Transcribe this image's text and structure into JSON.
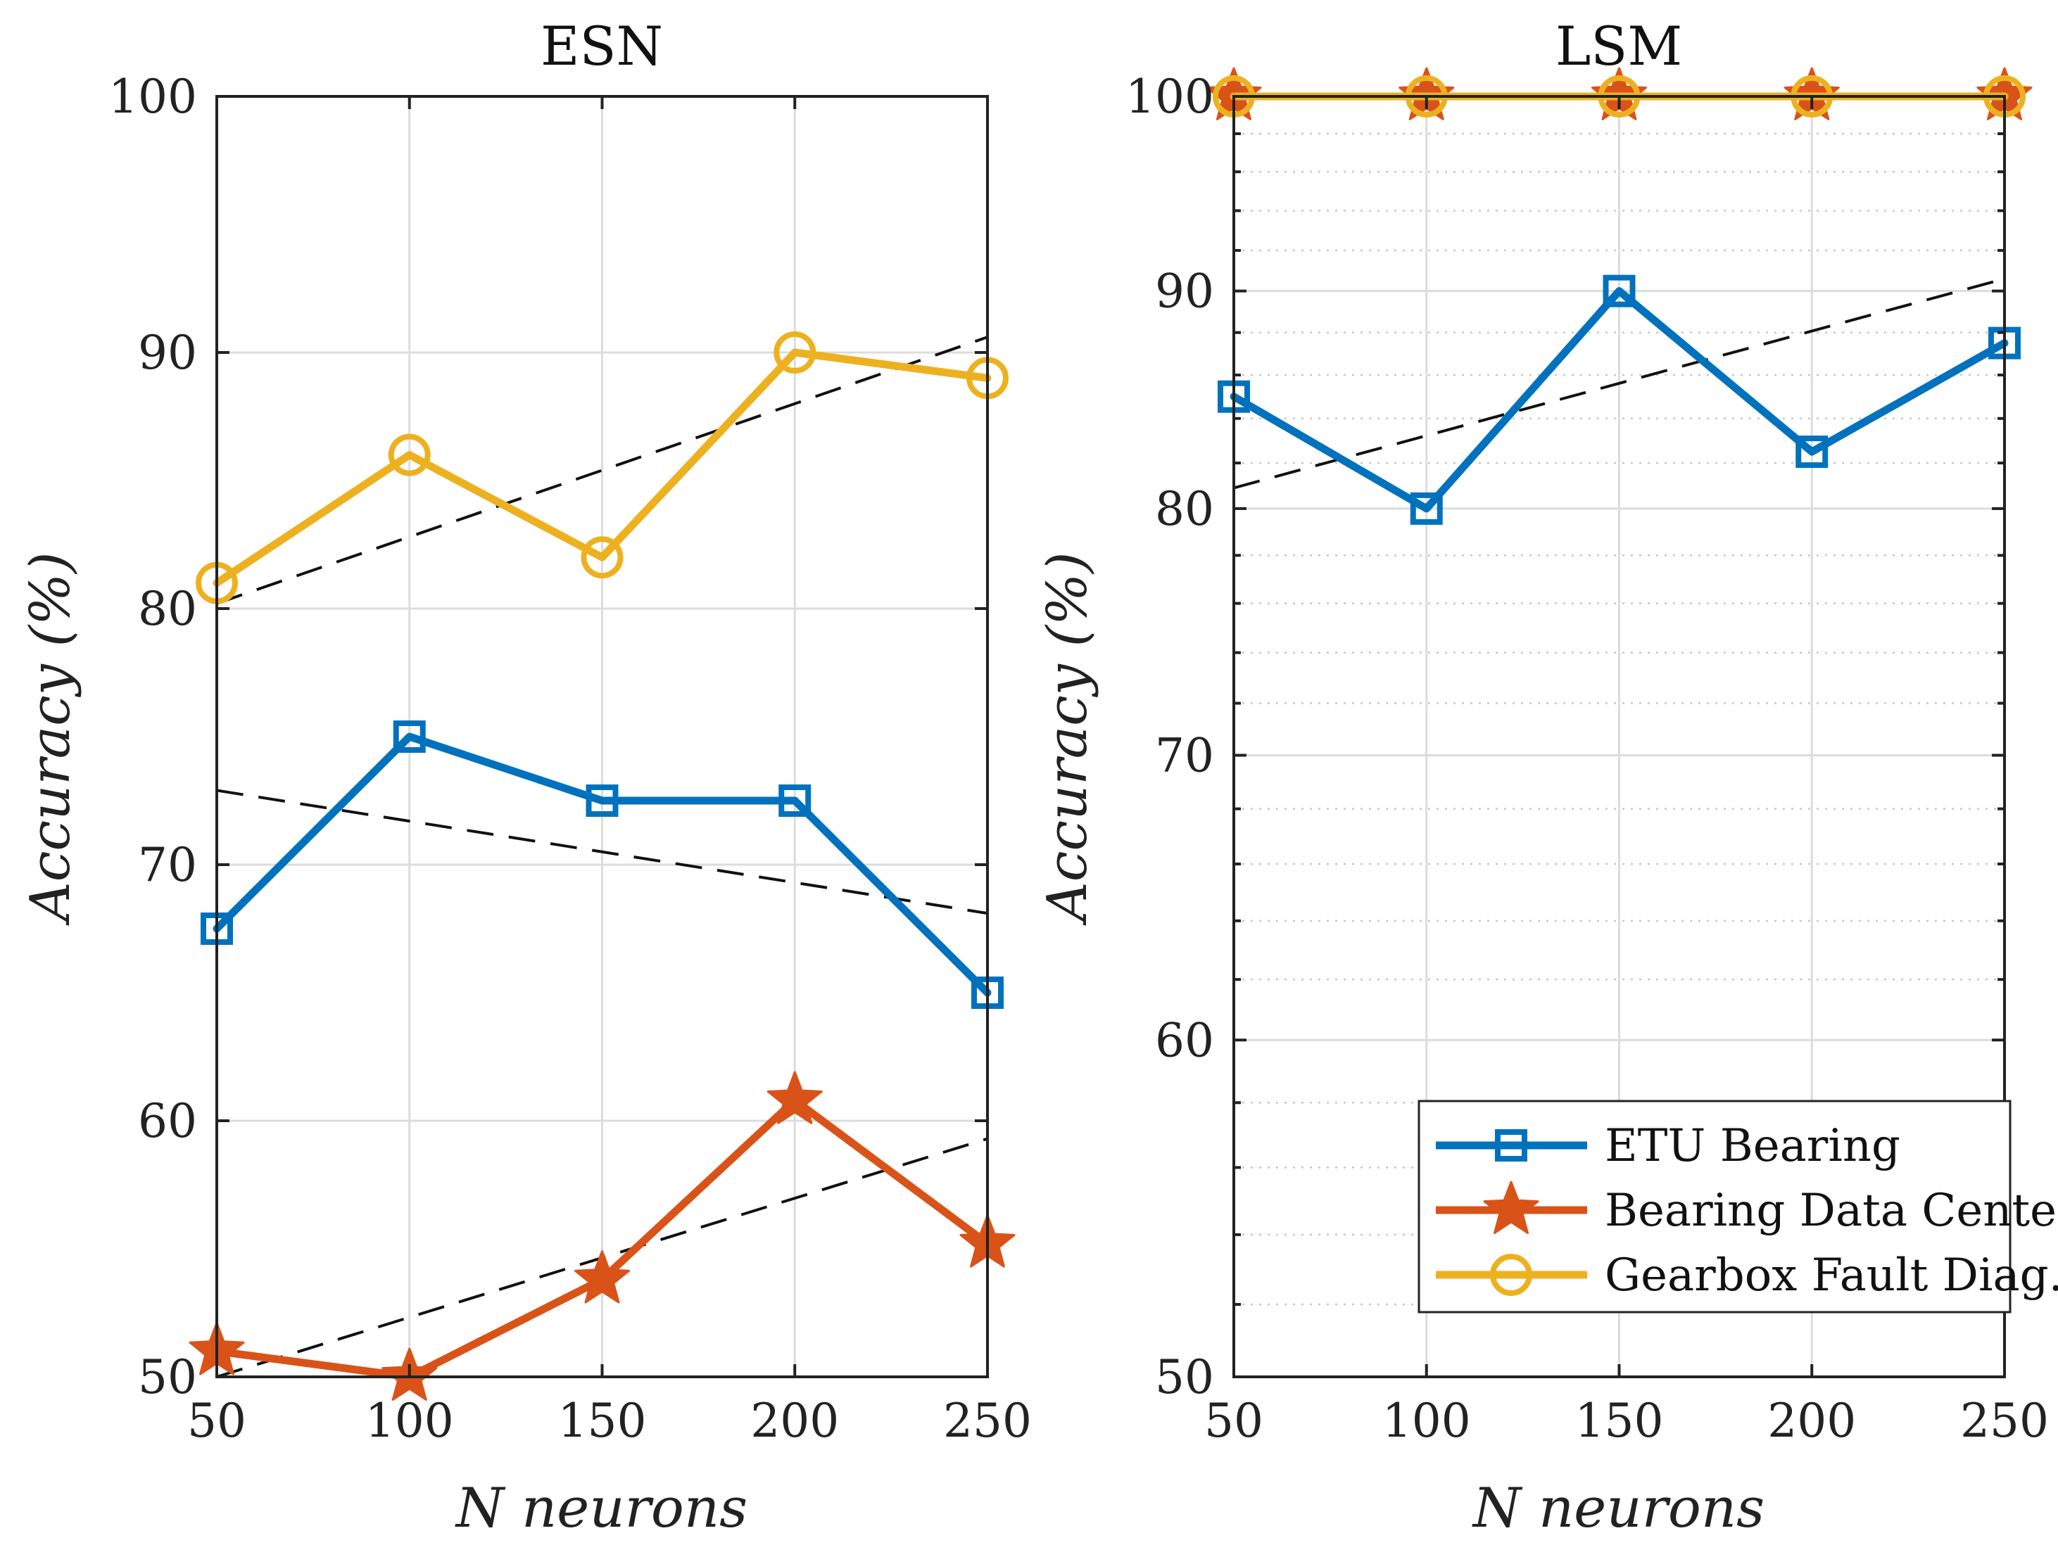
{
  "chart_data": [
    {
      "type": "line",
      "title": "ESN",
      "xlabel": "N neurons",
      "ylabel": "Accuracy (%)",
      "x": [
        50,
        100,
        150,
        200,
        250
      ],
      "xlim": [
        50,
        250
      ],
      "ylim": [
        50,
        100
      ],
      "xticks": [
        50,
        100,
        150,
        200,
        250
      ],
      "yticks": [
        50,
        60,
        70,
        80,
        90,
        100
      ],
      "yscale": "linear",
      "grid": true,
      "series": [
        {
          "name": "ETU Bearing",
          "values": [
            67.5,
            75,
            72.5,
            72.5,
            65
          ],
          "color": "#0072BD",
          "marker": "square",
          "trend": [
            72.9,
            68.1
          ]
        },
        {
          "name": "Bearing Data Center",
          "values": [
            51,
            50,
            53.8,
            60.8,
            55.2
          ],
          "color": "#D95319",
          "marker": "star",
          "trend": [
            50.0,
            59.3
          ]
        },
        {
          "name": "Gearbox Fault Diag.",
          "values": [
            81,
            86,
            82,
            90,
            89
          ],
          "color": "#EDB120",
          "marker": "circle",
          "trend": [
            80.2,
            90.6
          ]
        }
      ]
    },
    {
      "type": "line",
      "title": "LSM",
      "xlabel": "N neurons",
      "ylabel": "Accuracy (%)",
      "x": [
        50,
        100,
        150,
        200,
        250
      ],
      "xlim": [
        50,
        250
      ],
      "ylim": [
        50,
        100
      ],
      "xticks": [
        50,
        100,
        150,
        200,
        250
      ],
      "yticks": [
        50,
        60,
        70,
        80,
        90,
        100
      ],
      "yscale": "log",
      "grid": true,
      "legend": {
        "placement": "bottom-right",
        "entries": [
          {
            "label": "ETU Bearing",
            "color": "#0072BD",
            "marker": "square"
          },
          {
            "label": "Bearing Data Center",
            "color": "#D95319",
            "marker": "star"
          },
          {
            "label": "Gearbox Fault Diag.",
            "color": "#EDB120",
            "marker": "circle"
          }
        ]
      },
      "series": [
        {
          "name": "ETU Bearing",
          "values": [
            85,
            80,
            90,
            82.5,
            87.5
          ],
          "color": "#0072BD",
          "marker": "square",
          "trend": [
            80.9,
            90.6
          ]
        },
        {
          "name": "Bearing Data Center",
          "values": [
            100,
            100,
            100,
            100,
            100
          ],
          "color": "#D95319",
          "marker": "star"
        },
        {
          "name": "Gearbox Fault Diag.",
          "values": [
            100,
            100,
            100,
            100,
            100
          ],
          "color": "#EDB120",
          "marker": "circle"
        }
      ]
    }
  ]
}
